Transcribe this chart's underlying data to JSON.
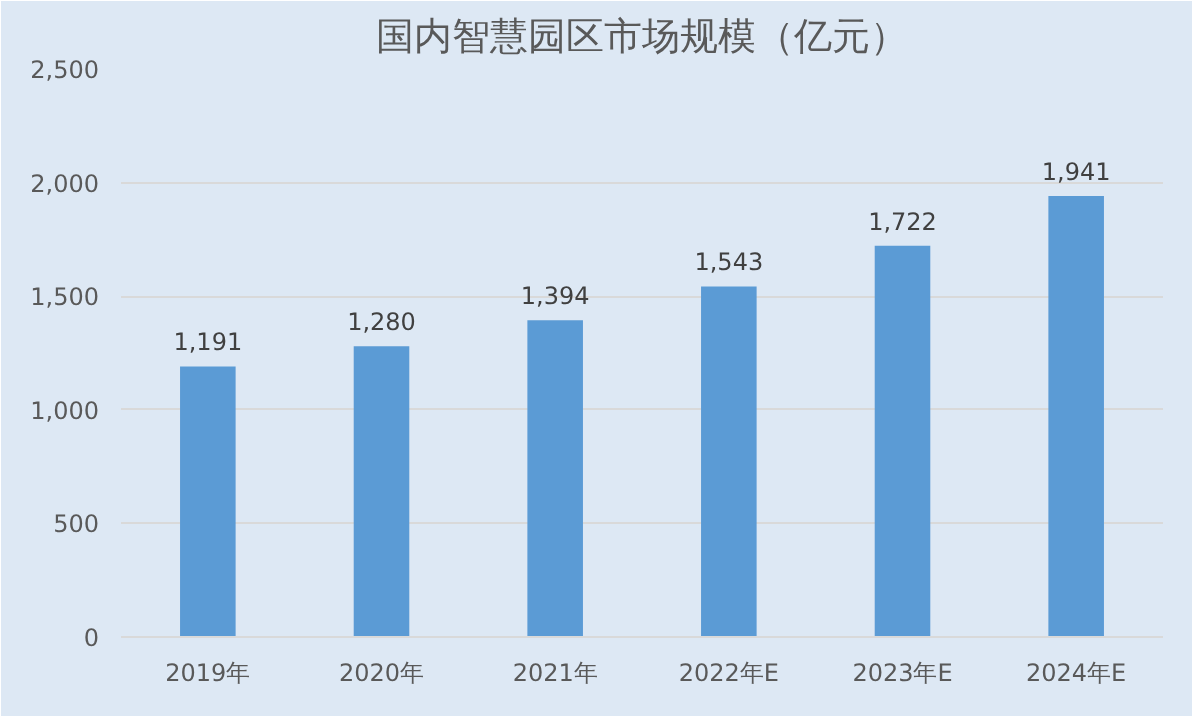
{
  "chart_data": {
    "type": "bar",
    "title": "国内智慧园区市场规模（亿元）",
    "categories": [
      "2019年",
      "2020年",
      "2021年",
      "2022年E",
      "2023年E",
      "2024年E"
    ],
    "values": [
      1191,
      1280,
      1394,
      1543,
      1722,
      1941
    ],
    "value_labels": [
      "1,191",
      "1,280",
      "1,394",
      "1,543",
      "1,722",
      "1,941"
    ],
    "color": "#5b9bd5",
    "ylim": [
      0,
      2500
    ],
    "yticks": [
      {
        "value": 0,
        "label": "0"
      },
      {
        "value": 500,
        "label": "500"
      },
      {
        "value": 1000,
        "label": "1,000"
      },
      {
        "value": 1500,
        "label": "1,500"
      },
      {
        "value": 2000,
        "label": "2,000"
      },
      {
        "value": 2500,
        "label": "2,500"
      }
    ],
    "grid": "y"
  }
}
